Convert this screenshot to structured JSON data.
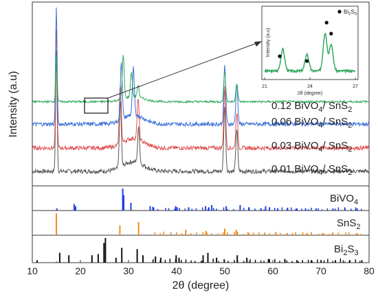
{
  "chart_data": {
    "type": "line",
    "xlabel": "2θ (degree)",
    "ylabel": "Intensity (a.u)",
    "xlim": [
      10,
      80
    ],
    "xticks": [
      10,
      20,
      30,
      40,
      50,
      60,
      70,
      80
    ],
    "series": [
      {
        "name": "0.01 BiVO4/ SnS2",
        "label_main": "0.01 BiVO",
        "label_sub": "4",
        "label_mid": "/ SnS",
        "label_sub2": "2",
        "color": "#555555",
        "peaks": [
          [
            15.0,
            1.0
          ],
          [
            28.3,
            0.55
          ],
          [
            32.1,
            0.3
          ],
          [
            50.0,
            0.55
          ],
          [
            52.5,
            0.35
          ]
        ]
      },
      {
        "name": "0.03 BiVO4/ SnS2",
        "label_main": "0.03 BiVO",
        "label_sub": "4",
        "label_mid": "/ SnS",
        "label_sub2": "2",
        "color": "#e05050",
        "peaks": [
          [
            15.0,
            1.0
          ],
          [
            28.3,
            0.5
          ],
          [
            32.0,
            0.35
          ],
          [
            50.0,
            0.5
          ],
          [
            52.5,
            0.3
          ]
        ]
      },
      {
        "name": "0.06 BiVO4/ SnS2",
        "label_main": "0.06 BiVO",
        "label_sub": "4",
        "label_mid": "/ SnS",
        "label_sub2": "2",
        "color": "#3a6fd8",
        "peaks": [
          [
            15.0,
            1.0
          ],
          [
            28.5,
            0.5
          ],
          [
            31.0,
            0.4
          ],
          [
            50.0,
            0.5
          ],
          [
            52.5,
            0.35
          ]
        ]
      },
      {
        "name": "0.12 BiVO4/ SnS2",
        "label_main": "0.12 BiVO",
        "label_sub": "4",
        "label_mid": "/ SnS",
        "label_sub2": "2",
        "color": "#2ea85a",
        "peaks": [
          [
            15.0,
            0.75
          ],
          [
            28.9,
            0.7
          ],
          [
            30.6,
            0.4
          ],
          [
            32.0,
            0.2
          ],
          [
            50.0,
            0.5
          ],
          [
            52.5,
            0.3
          ]
        ]
      }
    ],
    "reference_patterns": [
      {
        "name": "BiVO4",
        "label_main": "BiVO",
        "label_sub": "4",
        "color": "#1f3fe0",
        "lines": [
          [
            15.1,
            0.1
          ],
          [
            18.7,
            0.3
          ],
          [
            19.0,
            0.2
          ],
          [
            28.8,
            1.0
          ],
          [
            29.0,
            0.7
          ],
          [
            30.5,
            0.35
          ],
          [
            34.5,
            0.2
          ],
          [
            35.2,
            0.15
          ],
          [
            39.8,
            0.2
          ],
          [
            40.1,
            0.15
          ],
          [
            42.5,
            0.15
          ],
          [
            46.0,
            0.2
          ],
          [
            46.7,
            0.15
          ],
          [
            47.3,
            0.25
          ],
          [
            50.3,
            0.2
          ],
          [
            53.2,
            0.25
          ],
          [
            55.0,
            0.15
          ],
          [
            57.5,
            0.1
          ],
          [
            58.5,
            0.2
          ],
          [
            59.3,
            0.15
          ],
          [
            61.0,
            0.1
          ],
          [
            63.0,
            0.1
          ],
          [
            65.0,
            0.1
          ],
          [
            66.8,
            0.1
          ],
          [
            69.0,
            0.1
          ],
          [
            72.5,
            0.1
          ],
          [
            75.0,
            0.1
          ],
          [
            77.5,
            0.1
          ]
        ]
      },
      {
        "name": "SnS2",
        "label_main": "SnS",
        "label_sub": "2",
        "color": "#f08c1e",
        "lines": [
          [
            15.0,
            1.0
          ],
          [
            28.2,
            0.45
          ],
          [
            32.1,
            0.6
          ],
          [
            41.9,
            0.25
          ],
          [
            46.1,
            0.2
          ],
          [
            50.0,
            0.3
          ],
          [
            52.4,
            0.25
          ],
          [
            55.0,
            0.1
          ],
          [
            58.3,
            0.1
          ],
          [
            60.6,
            0.15
          ],
          [
            63.0,
            0.1
          ],
          [
            67.1,
            0.1
          ],
          [
            70.3,
            0.1
          ],
          [
            72.4,
            0.1
          ],
          [
            77.5,
            0.1
          ]
        ]
      },
      {
        "name": "Bi2S3",
        "label_main": "Bi",
        "label_sub": "2",
        "label_mid": "S",
        "label_sub2": "3",
        "color": "#111111",
        "lines": [
          [
            11.0,
            0.1
          ],
          [
            15.7,
            0.4
          ],
          [
            17.6,
            0.3
          ],
          [
            22.4,
            0.3
          ],
          [
            23.7,
            0.35
          ],
          [
            24.9,
            0.8
          ],
          [
            25.2,
            1.0
          ],
          [
            27.4,
            0.2
          ],
          [
            28.6,
            0.6
          ],
          [
            31.8,
            0.55
          ],
          [
            33.0,
            0.3
          ],
          [
            35.6,
            0.25
          ],
          [
            36.7,
            0.2
          ],
          [
            39.9,
            0.3
          ],
          [
            40.5,
            0.2
          ],
          [
            45.5,
            0.3
          ],
          [
            46.5,
            0.4
          ],
          [
            48.3,
            0.2
          ],
          [
            52.6,
            0.3
          ],
          [
            54.6,
            0.2
          ],
          [
            59.1,
            0.15
          ],
          [
            62.5,
            0.15
          ],
          [
            65.0,
            0.1
          ],
          [
            68.0,
            0.1
          ],
          [
            70.0,
            0.1
          ],
          [
            73.0,
            0.1
          ],
          [
            76.0,
            0.1
          ],
          [
            78.5,
            0.1
          ]
        ]
      }
    ],
    "inset": {
      "xlabel": "2θ (degree)",
      "ylabel": "Intensity (a.u)",
      "xlim": [
        21,
        27
      ],
      "xticks": [
        21,
        24,
        27
      ],
      "legend_main": "Bi",
      "legend_sub": "2",
      "legend_mid": "S",
      "legend_sub2": "3",
      "color": "#2ea85a",
      "peaks": [
        [
          22.2,
          0.45
        ],
        [
          23.8,
          0.35
        ],
        [
          25.0,
          0.8
        ],
        [
          25.4,
          0.55
        ]
      ],
      "markers": [
        22.0,
        23.8,
        25.1,
        25.4
      ]
    }
  }
}
